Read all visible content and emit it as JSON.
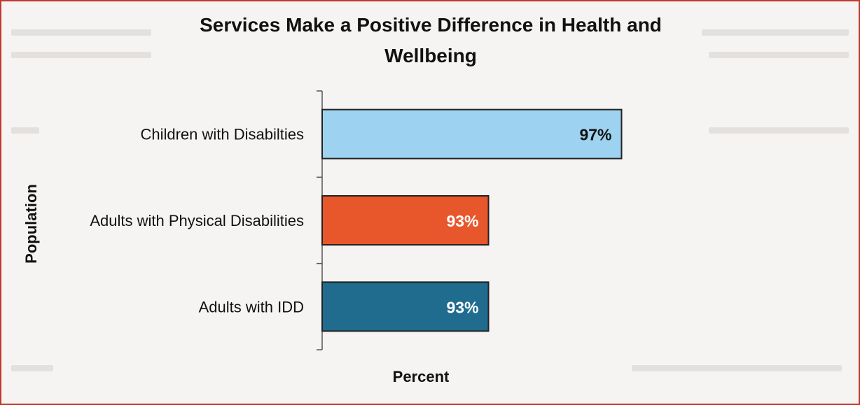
{
  "chart_data": {
    "type": "bar",
    "orientation": "horizontal",
    "title": "Services Make a Positive Difference in Health and Wellbeing",
    "xlabel": "Percent",
    "ylabel": "Population",
    "categories": [
      "Children with Disabilties",
      "Adults with Physical Disabilities",
      "Adults with IDD"
    ],
    "values": [
      97,
      93,
      93
    ],
    "data_labels": [
      "97%",
      "93%",
      "93%"
    ],
    "bar_colors": [
      "#9dd3f0",
      "#e8562b",
      "#1f6c8f"
    ],
    "label_colors": [
      "#111111",
      "#ffffff",
      "#ffffff"
    ],
    "xlim": [
      88,
      100
    ],
    "grid": false,
    "legend": "none"
  }
}
